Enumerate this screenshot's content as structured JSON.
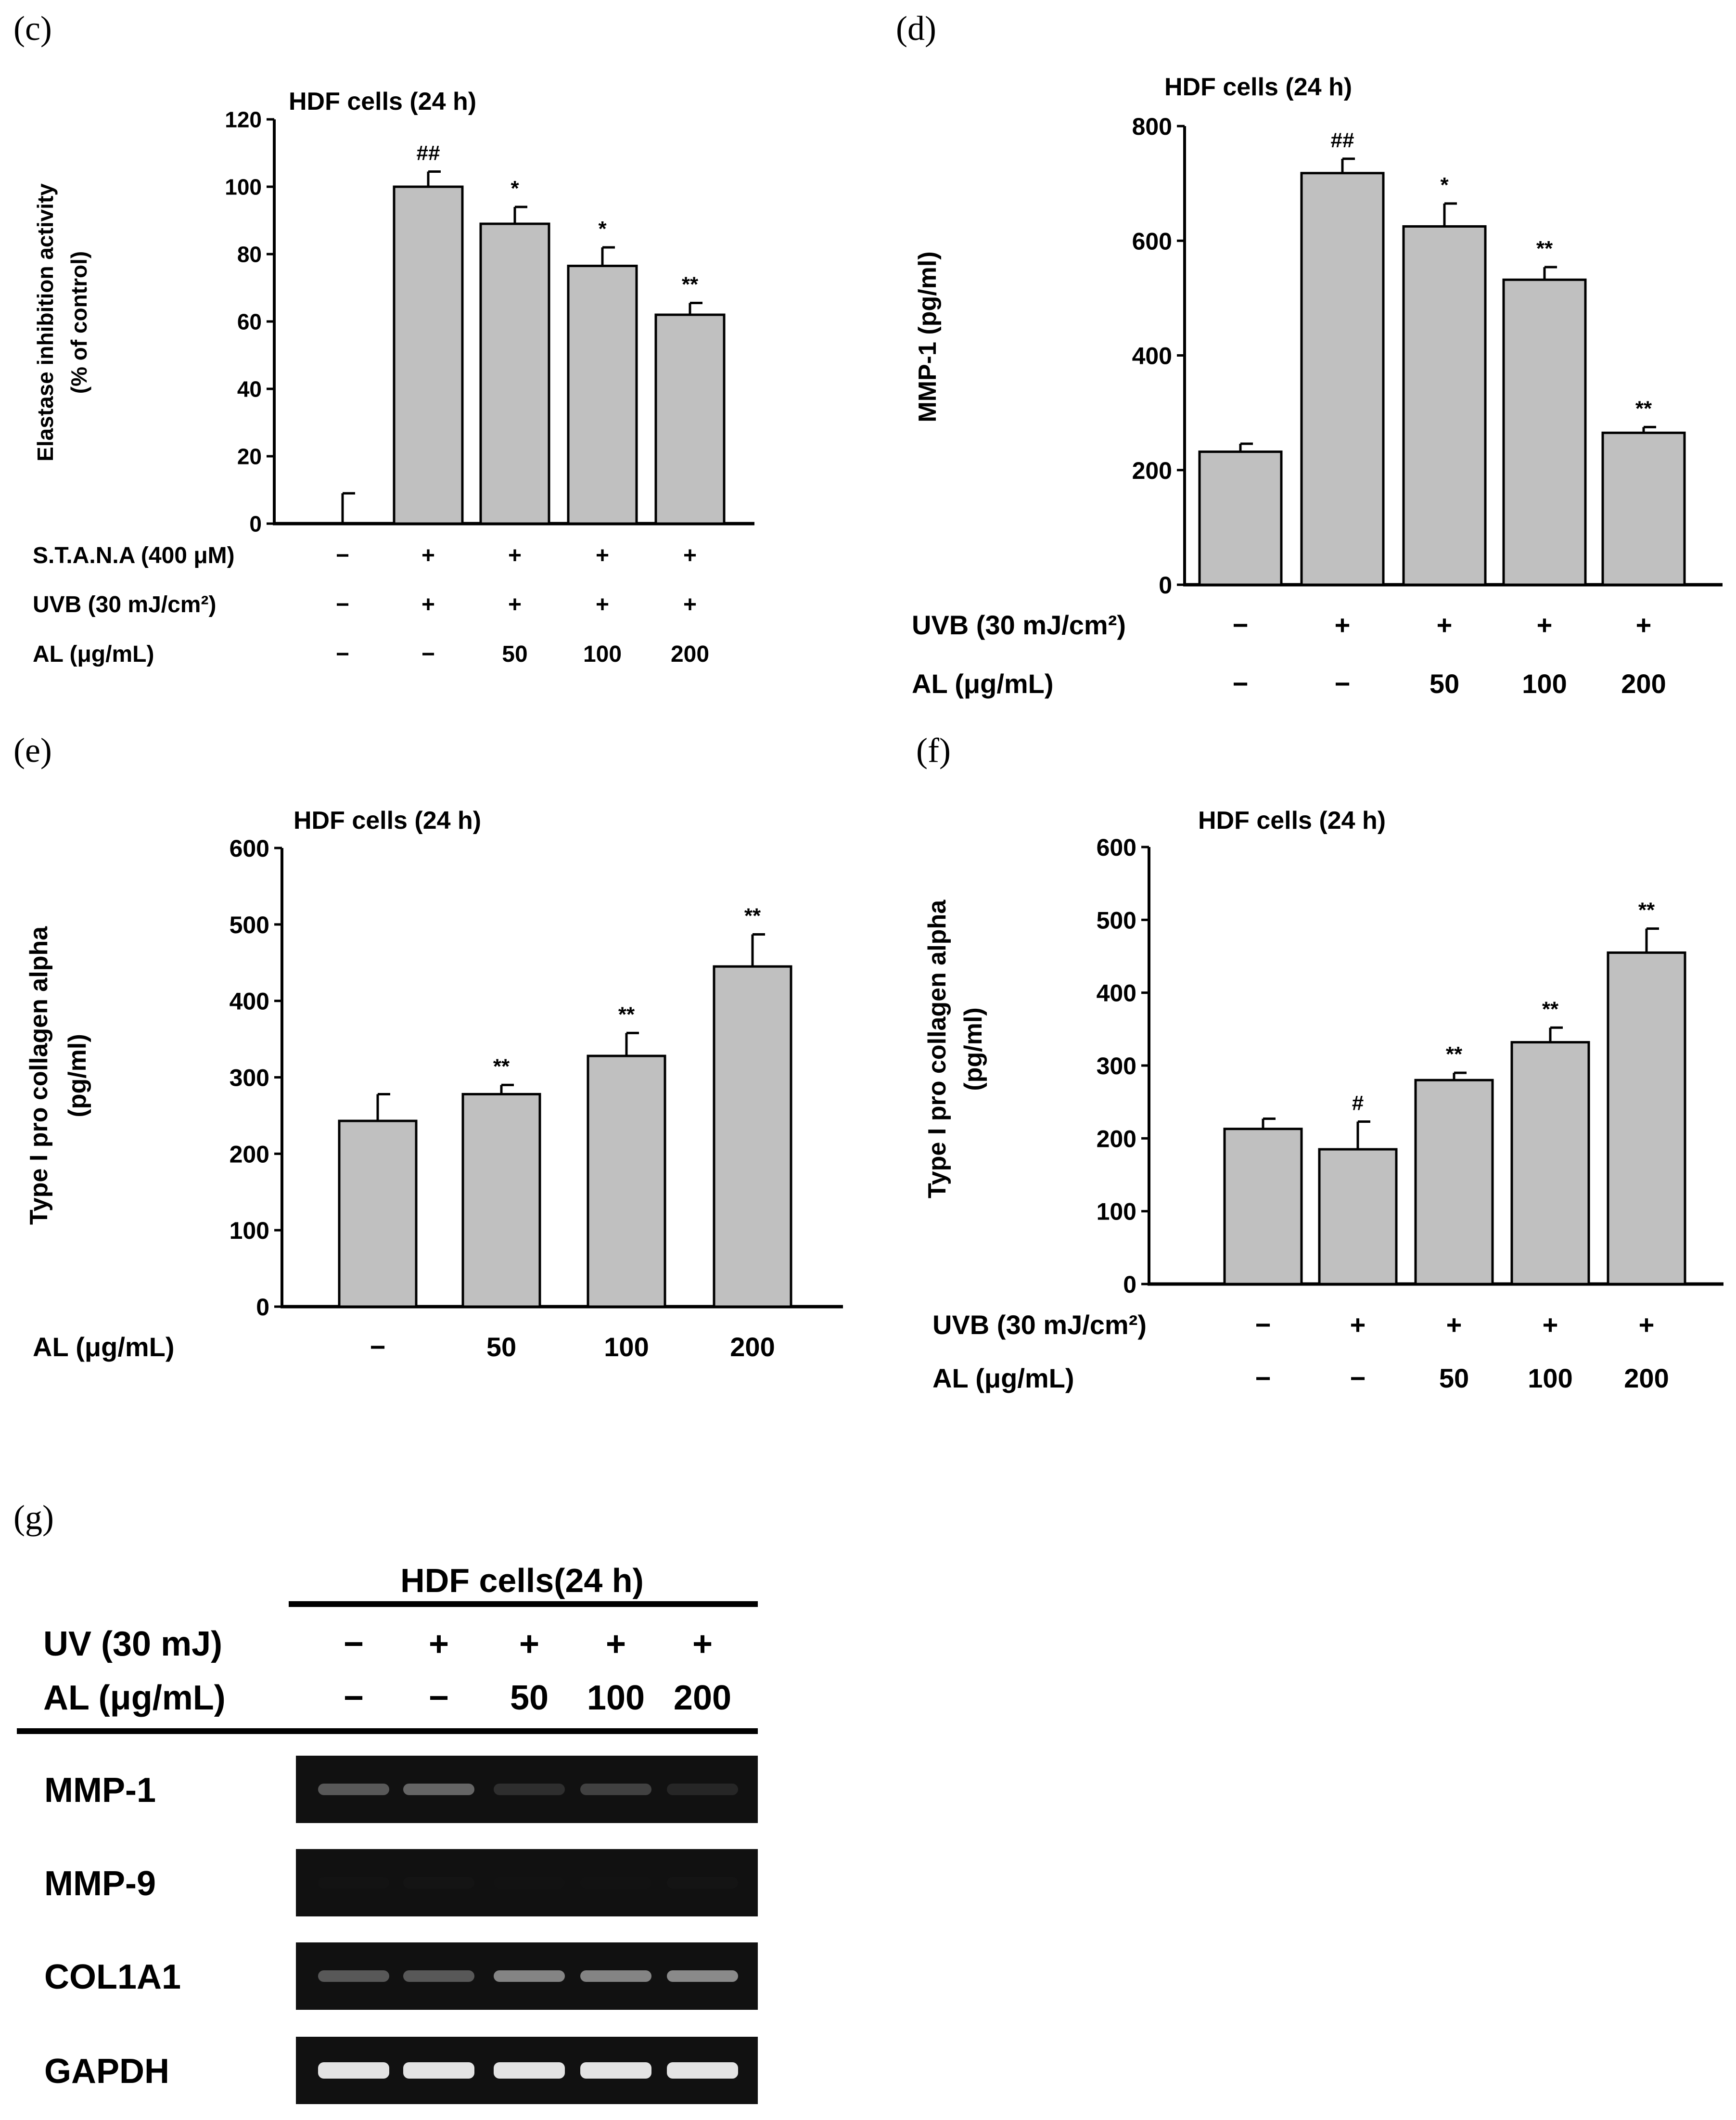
{
  "figure": {
    "panels": [
      {
        "key": "c",
        "label": "(c)"
      },
      {
        "key": "d",
        "label": "(d)"
      },
      {
        "key": "e",
        "label": "(e)"
      },
      {
        "key": "f",
        "label": "(f)"
      },
      {
        "key": "g",
        "label": "(g)"
      }
    ]
  },
  "chart_data": [
    {
      "key": "c",
      "type": "bar",
      "title": "HDF cells (24 h)",
      "ylabel": "Elastase inhibition activity",
      "ylabel2": "(% of control)",
      "ylim": [
        0,
        120
      ],
      "yticks": [
        0,
        20,
        40,
        60,
        80,
        100,
        120
      ],
      "values": [
        0,
        100,
        89,
        76.5,
        62
      ],
      "errors": [
        9,
        4.5,
        5,
        5.5,
        3.5
      ],
      "significance": [
        "",
        "##",
        "*",
        "*",
        "**"
      ],
      "conditions": [
        {
          "name": "S.T.A.N.A (400 μM)",
          "values": [
            "−",
            "+",
            "+",
            "+",
            "+"
          ]
        },
        {
          "name": "UVB (30 mJ/cm²)",
          "values": [
            "−",
            "+",
            "+",
            "+",
            "+"
          ]
        },
        {
          "name": "AL (μg/mL)",
          "values": [
            "−",
            "−",
            "50",
            "100",
            "200"
          ]
        }
      ]
    },
    {
      "key": "d",
      "type": "bar",
      "title": "HDF cells (24 h)",
      "ylabel": "MMP-1 (pg/ml)",
      "ylabel2": "",
      "ylim": [
        0,
        800
      ],
      "yticks": [
        0,
        200,
        400,
        600,
        800
      ],
      "values": [
        232,
        718,
        625,
        532,
        265
      ],
      "errors": [
        14,
        25,
        40,
        22,
        10
      ],
      "significance": [
        "",
        "##",
        "*",
        "**",
        "**"
      ],
      "conditions": [
        {
          "name": "UVB (30 mJ/cm²)",
          "values": [
            "−",
            "+",
            "+",
            "+",
            "+"
          ]
        },
        {
          "name": "AL (μg/mL)",
          "values": [
            "−",
            "−",
            "50",
            "100",
            "200"
          ]
        }
      ]
    },
    {
      "key": "e",
      "type": "bar",
      "title": "HDF cells (24 h)",
      "ylabel": "Type I pro collagen alpha",
      "ylabel2": "(pg/ml)",
      "ylim": [
        0,
        600
      ],
      "yticks": [
        0,
        100,
        200,
        300,
        400,
        500,
        600
      ],
      "values": [
        243,
        278,
        328,
        445
      ],
      "errors": [
        35,
        12,
        30,
        42
      ],
      "significance": [
        "",
        "**",
        "**",
        "**"
      ],
      "conditions": [
        {
          "name": "AL (μg/mL)",
          "values": [
            "−",
            "50",
            "100",
            "200"
          ]
        }
      ]
    },
    {
      "key": "f",
      "type": "bar",
      "title": "HDF cells (24 h)",
      "ylabel": "Type I pro collagen alpha",
      "ylabel2": "(pg/ml)",
      "ylim": [
        0,
        600
      ],
      "yticks": [
        0,
        100,
        200,
        300,
        400,
        500,
        600
      ],
      "values": [
        213,
        185,
        280,
        332,
        455
      ],
      "errors": [
        14,
        38,
        10,
        20,
        33
      ],
      "significance": [
        "",
        "#",
        "**",
        "**",
        "**"
      ],
      "conditions": [
        {
          "name": "UVB (30 mJ/cm²)",
          "values": [
            "−",
            "+",
            "+",
            "+",
            "+"
          ]
        },
        {
          "name": "AL (μg/mL)",
          "values": [
            "−",
            "−",
            "50",
            "100",
            "200"
          ]
        }
      ]
    }
  ],
  "gel": {
    "title": "HDF  cells(24 h)",
    "conditions": [
      {
        "name": "UV (30 mJ)",
        "values": [
          "−",
          "+",
          "+",
          "+",
          "+"
        ]
      },
      {
        "name": "AL (μg/mL)",
        "values": [
          "−",
          "−",
          "50",
          "100",
          "200"
        ]
      }
    ],
    "rows": [
      {
        "name": "MMP-1",
        "intensity": [
          0.55,
          0.6,
          0.35,
          0.45,
          0.3
        ]
      },
      {
        "name": "MMP-9",
        "intensity": [
          0.05,
          0.08,
          0.03,
          0.03,
          0.1
        ]
      },
      {
        "name": "COL1A1",
        "intensity": [
          0.55,
          0.55,
          0.7,
          0.7,
          0.72
        ]
      },
      {
        "name": "GAPDH",
        "intensity": [
          0.95,
          0.95,
          0.95,
          0.95,
          0.95
        ]
      }
    ]
  }
}
